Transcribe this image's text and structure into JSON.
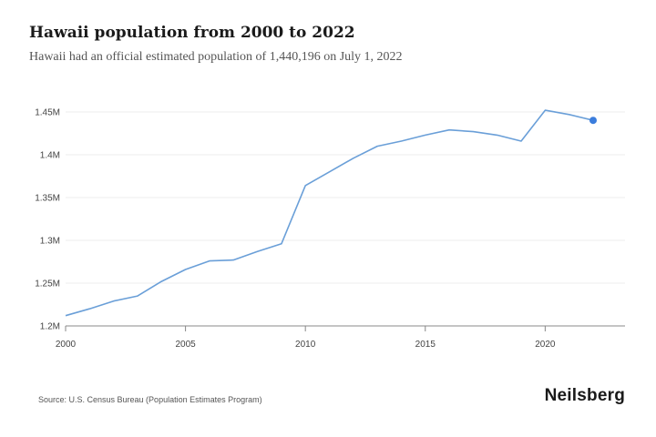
{
  "header": {
    "title": "Hawaii population from 2000 to 2022",
    "subtitle": "Hawaii had an official estimated population of 1,440,196 on July 1, 2022"
  },
  "footer": {
    "source": "Source: U.S. Census Bureau (Population Estimates Program)",
    "brand": "Neilsberg"
  },
  "chart_data": {
    "type": "line",
    "title": "Hawaii population from 2000 to 2022",
    "xlabel": "",
    "ylabel": "",
    "x": [
      2000,
      2001,
      2002,
      2003,
      2004,
      2005,
      2006,
      2007,
      2008,
      2009,
      2010,
      2011,
      2012,
      2013,
      2014,
      2015,
      2016,
      2017,
      2018,
      2019,
      2020,
      2021,
      2022
    ],
    "series": [
      {
        "values": [
          1212000,
          1220000,
          1229000,
          1235000,
          1252000,
          1266000,
          1276000,
          1277000,
          1287000,
          1296000,
          1364000,
          1380000,
          1396000,
          1410000,
          1416000,
          1423000,
          1429000,
          1427000,
          1423000,
          1416000,
          1452000,
          1447000,
          1440196
        ]
      }
    ],
    "xlim": [
      2000,
      2022
    ],
    "ylim": [
      1200000,
      1450000
    ],
    "x_ticks": [
      "2000",
      "2005",
      "2010",
      "2015",
      "2020"
    ],
    "x_tick_values": [
      2000,
      2005,
      2010,
      2015,
      2020
    ],
    "y_ticks": [
      "1.2M",
      "1.25M",
      "1.3M",
      "1.35M",
      "1.4M",
      "1.45M"
    ],
    "y_tick_values": [
      1200000,
      1250000,
      1300000,
      1350000,
      1400000,
      1450000
    ],
    "grid": true,
    "line_color": "#6a9fd8",
    "marker_color": "#3b7ddd",
    "highlight_last_point": true
  }
}
